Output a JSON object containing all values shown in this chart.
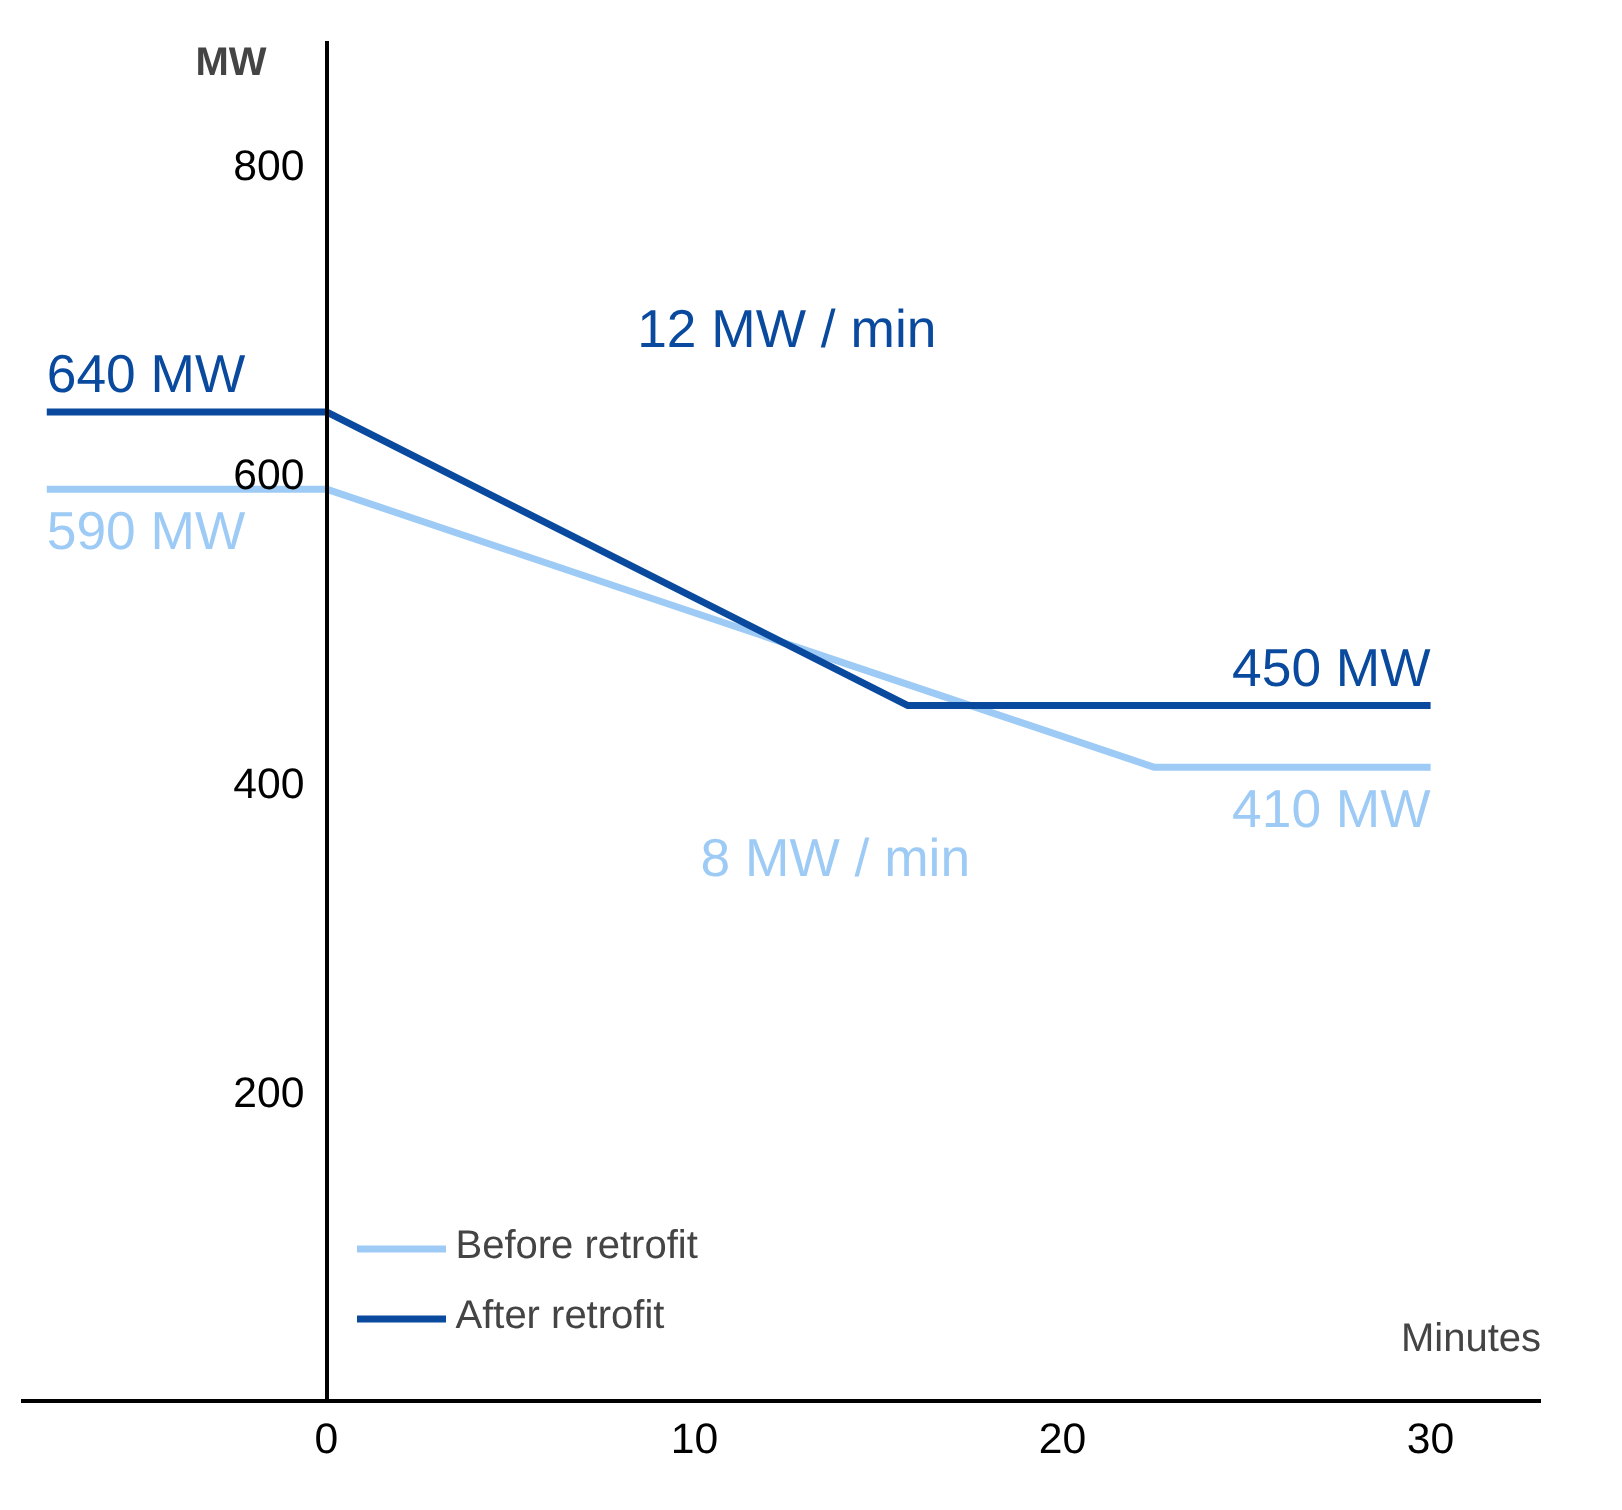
{
  "chart_data": {
    "type": "line",
    "ylabel": "MW",
    "xlabel": "Minutes",
    "xlim": [
      -8.3,
      33
    ],
    "ylim": [
      0,
      880
    ],
    "xticks": [
      0,
      10,
      20,
      30
    ],
    "yticks": [
      200,
      400,
      600,
      800
    ],
    "grid": false,
    "legend": "bottom left",
    "line_style": "solid",
    "marker": "none",
    "series": [
      {
        "name": "Before retrofit",
        "color": "#9dcbf5",
        "x": [
          -7.6,
          0,
          22.5,
          30
        ],
        "values": [
          590,
          590,
          410,
          410
        ],
        "value_labels": [
          "590 MW",
          null,
          null,
          "410 MW"
        ]
      },
      {
        "name": "After retrofit",
        "color": "#0a4a9e",
        "x": [
          -7.6,
          0,
          15.8,
          30
        ],
        "values": [
          640,
          640,
          450,
          450
        ],
        "value_labels": [
          "640 MW",
          null,
          null,
          "450 MW"
        ]
      }
    ],
    "annotations": [
      "8 MW / min",
      "12 MW / min"
    ]
  }
}
